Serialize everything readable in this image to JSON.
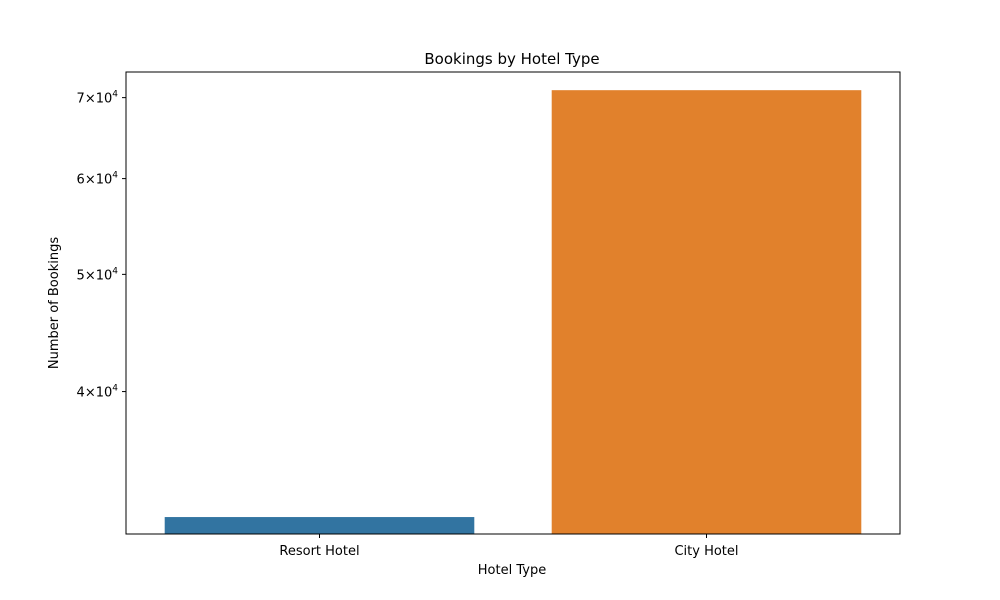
{
  "chart_data": {
    "type": "bar",
    "title": "Bookings by Hotel Type",
    "xlabel": "Hotel Type",
    "ylabel": "Number of Bookings",
    "yscale": "log",
    "ylim": [
      30500,
      73500
    ],
    "categories": [
      "Resort Hotel",
      "City Hotel"
    ],
    "values": [
      31500,
      71000
    ],
    "colors": [
      "#3274a1",
      "#e1812c"
    ],
    "yticks": [
      {
        "value": 40000,
        "mantissa": "4",
        "base": "10",
        "exp": "4"
      },
      {
        "value": 50000,
        "mantissa": "5",
        "base": "10",
        "exp": "4"
      },
      {
        "value": 60000,
        "mantissa": "6",
        "base": "10",
        "exp": "4"
      },
      {
        "value": 70000,
        "mantissa": "7",
        "base": "10",
        "exp": "4"
      }
    ],
    "grid": false,
    "legend": "none"
  }
}
